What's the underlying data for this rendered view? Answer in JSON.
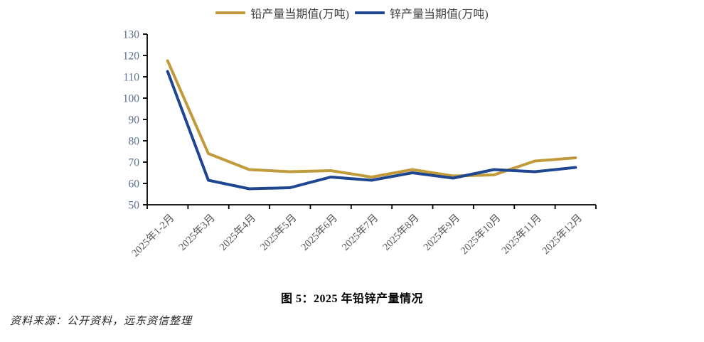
{
  "figure": {
    "title": "图 5：2025 年铅锌产量情况",
    "source": "资料来源：公开资料，远东资信整理"
  },
  "chart_data": {
    "type": "line",
    "title": "图 5：2025 年铅锌产量情况",
    "categories": [
      "2025年1-2月",
      "2025年3月",
      "2025年4月",
      "2025年5月",
      "2025年6月",
      "2025年7月",
      "2025年8月",
      "2025年9月",
      "2025年10月",
      "2025年11月",
      "2025年12月"
    ],
    "series": [
      {
        "name": "铅产量当期值(万吨)",
        "color": "#C09A3B",
        "values": [
          117.5,
          74,
          66.5,
          65.5,
          66,
          63,
          66.5,
          63.5,
          64,
          70.5,
          72
        ]
      },
      {
        "name": "锌产量当期值(万吨)",
        "color": "#1F4690",
        "values": [
          112.5,
          61.5,
          57.5,
          58,
          63,
          61.5,
          65,
          62.5,
          66.5,
          65.5,
          67.5
        ]
      }
    ],
    "ylim": [
      50,
      130
    ],
    "y_ticks": [
      50,
      60,
      70,
      80,
      90,
      100,
      110,
      120,
      130
    ],
    "grid": false,
    "legend_position": "top",
    "axis_color": "#000000",
    "y_tick_label_color": "#5C6E91",
    "x_tick_label_color": "#595959"
  }
}
